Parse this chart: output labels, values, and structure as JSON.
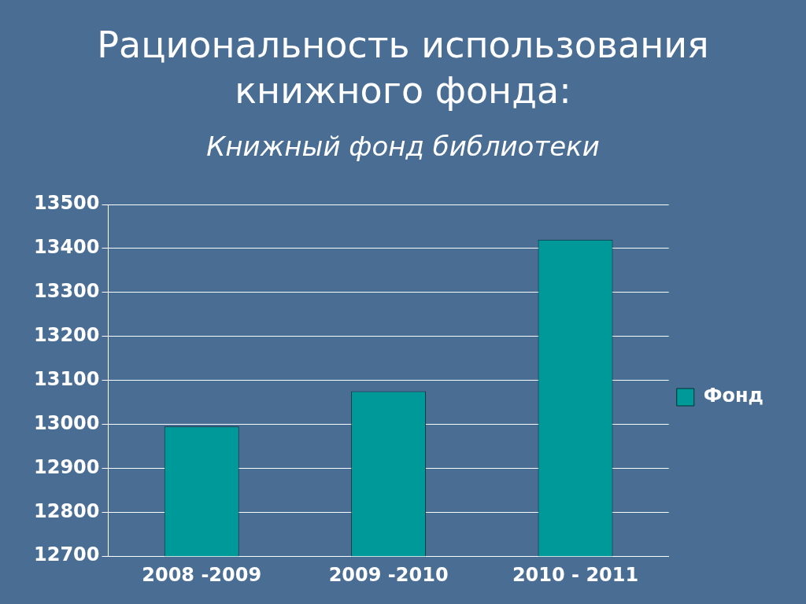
{
  "chart_data": {
    "type": "bar",
    "title": "Рациональность использования книжного фонда:",
    "subtitle": "Книжный фонд библиотеки",
    "categories": [
      "2008 -2009",
      "2009 -2010",
      "2010 - 2011"
    ],
    "series": [
      {
        "name": "Фонд",
        "color": "#009999",
        "values": [
          12995,
          13075,
          13420
        ]
      }
    ],
    "ylim": [
      12700,
      13500
    ],
    "yticks": [
      12700,
      12800,
      12900,
      13000,
      13100,
      13200,
      13300,
      13400,
      13500
    ],
    "grid": "y",
    "legend": "right"
  }
}
